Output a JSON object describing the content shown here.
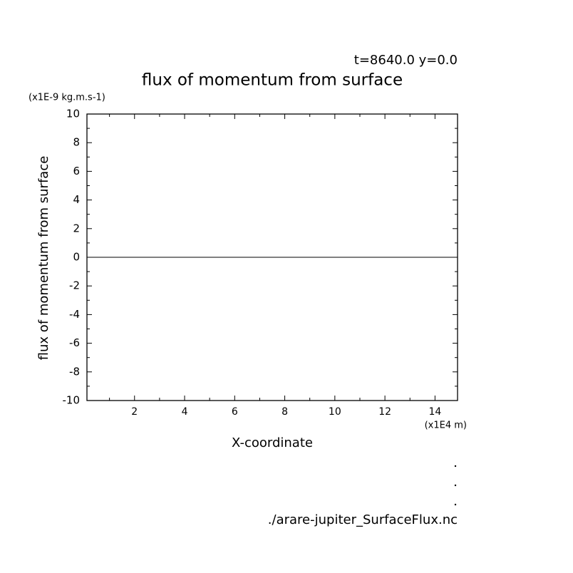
{
  "chart_data": {
    "type": "line",
    "title": "flux of momentum from surface",
    "subtitle": "t=8640.0 y=0.0",
    "y_unit": "(x1E-9 kg.m.s-1)",
    "y_label": "flux of momentum from surface",
    "x_unit": "(x1E4 m)",
    "x_label": "X-coordinate",
    "footer": "./arare-jupiter_SurfaceFlux.nc",
    "x": [
      0.1,
      14.9
    ],
    "series": [
      {
        "name": "flux of momentum from surface",
        "color": "#000000",
        "values": [
          0,
          0
        ]
      }
    ],
    "xlim": [
      0.1,
      14.9
    ],
    "xticks": [
      2,
      4,
      6,
      8,
      10,
      12,
      14
    ],
    "xminorticks": [
      1,
      3,
      5,
      7,
      9,
      11,
      13
    ],
    "ylim": [
      -10,
      10
    ],
    "yticks": [
      -10,
      -8,
      -6,
      -4,
      -2,
      0,
      2,
      4,
      6,
      8,
      10
    ],
    "yminorticks": [
      -9,
      -7,
      -5,
      -3,
      -1,
      1,
      3,
      5,
      7,
      9
    ],
    "grid": false
  }
}
